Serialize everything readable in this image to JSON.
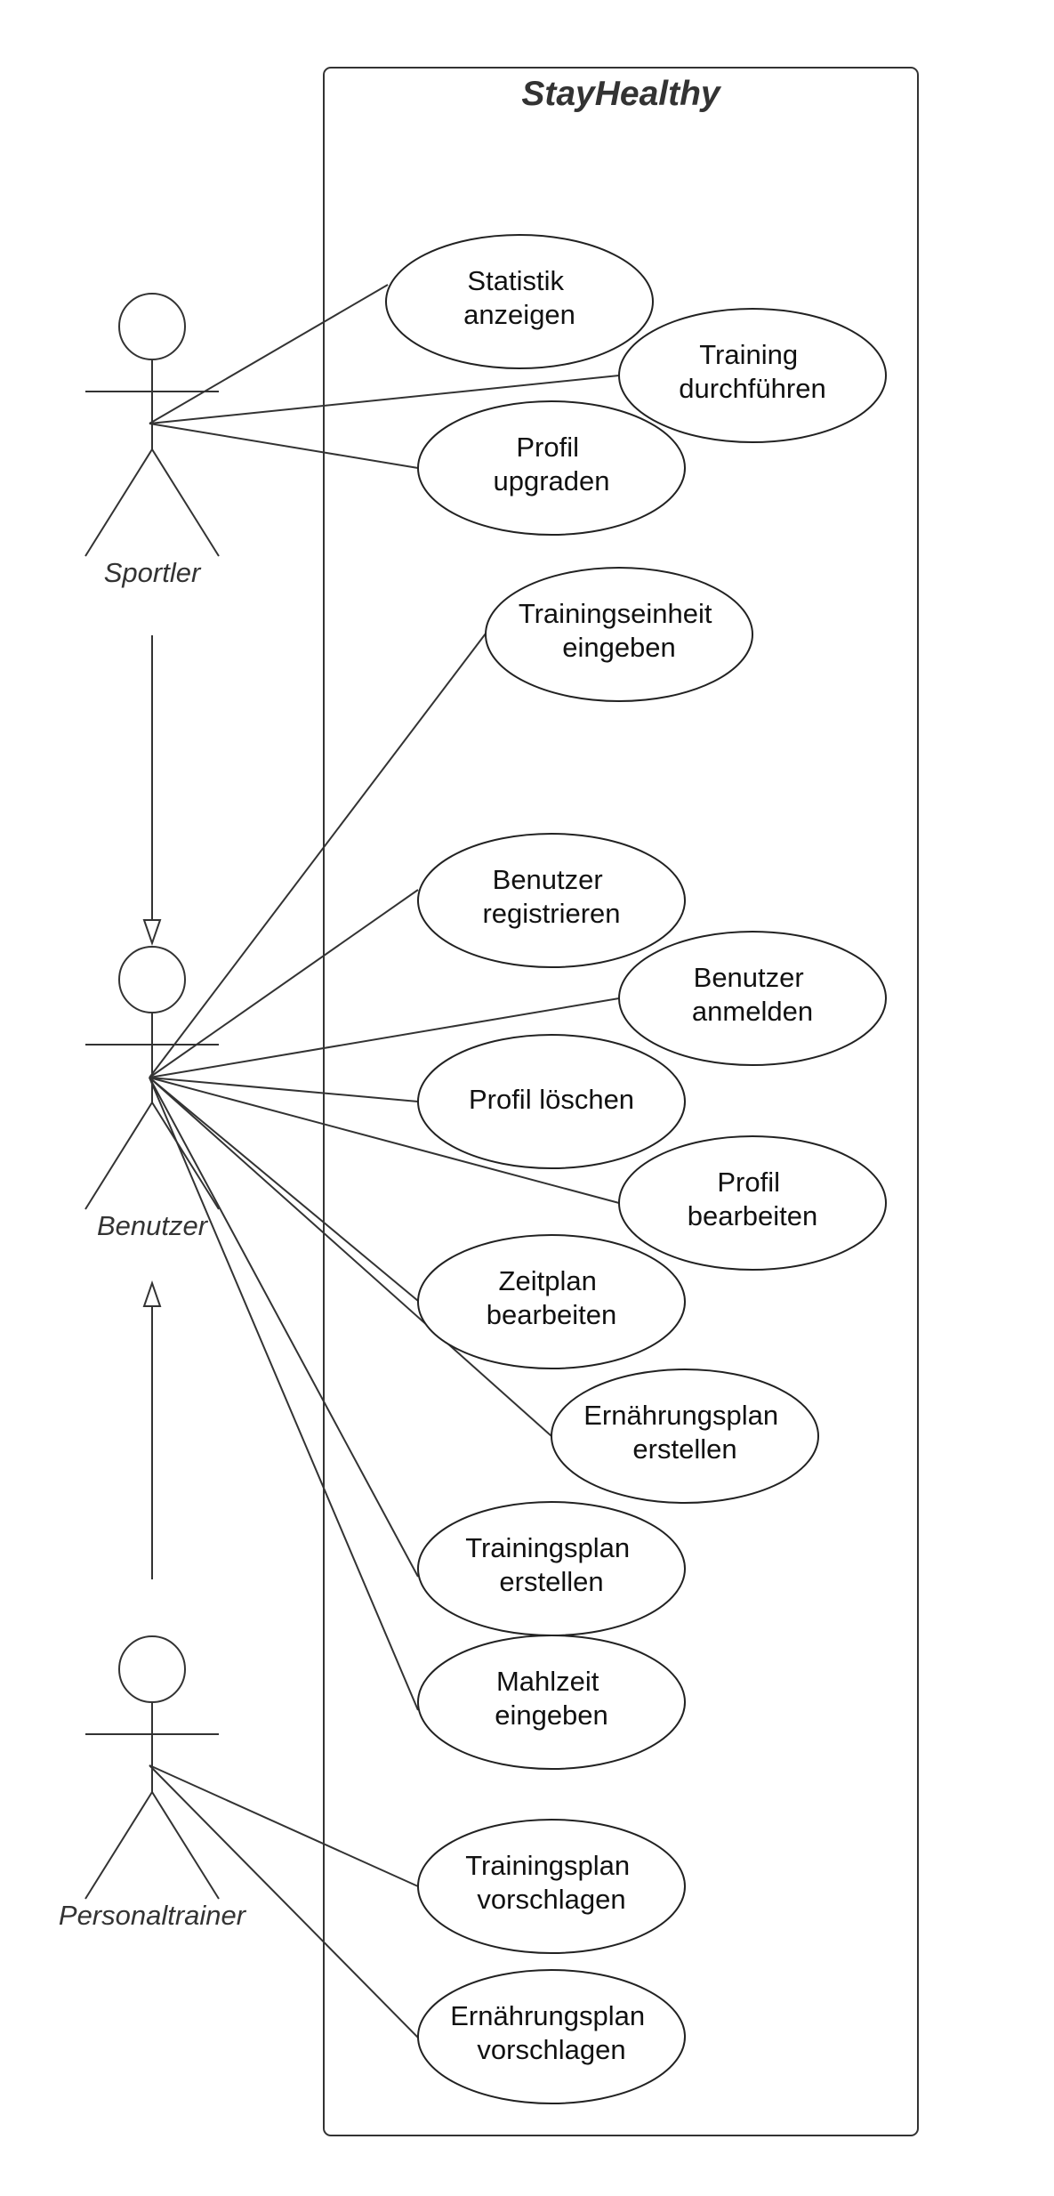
{
  "system": {
    "title": "StayHealthy"
  },
  "actors": {
    "sportler": "Sportler",
    "benutzer": "Benutzer",
    "personaltrainer": "Personaltrainer"
  },
  "use_cases": {
    "statistik": [
      "Statistik",
      "anzeigen"
    ],
    "training": [
      "Training",
      "durchführen"
    ],
    "profil_upgraden": [
      "Profil",
      "upgraden"
    ],
    "trainingseinheit": [
      "Trainingseinheit",
      "eingeben"
    ],
    "benutzer_registrieren": [
      "Benutzer",
      "registrieren"
    ],
    "benutzer_anmelden": [
      "Benutzer",
      "anmelden"
    ],
    "profil_loeschen": [
      "Profil löschen"
    ],
    "profil_bearbeiten": [
      "Profil",
      "bearbeiten"
    ],
    "zeitplan": [
      "Zeitplan",
      "bearbeiten"
    ],
    "ernaehrungsplan_erstellen": [
      "Ernährungsplan",
      "erstellen"
    ],
    "trainingsplan_erstellen": [
      "Trainingsplan",
      "erstellen"
    ],
    "mahlzeit": [
      "Mahlzeit",
      "eingeben"
    ],
    "trainingsplan_vorschlagen": [
      "Trainingsplan",
      "vorschlagen"
    ],
    "ernaehrungsplan_vorschlagen": [
      "Ernährungsplan",
      "vorschlagen"
    ]
  }
}
